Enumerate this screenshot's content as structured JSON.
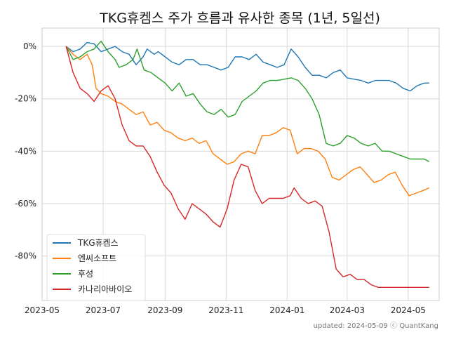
{
  "chart_data": {
    "type": "line",
    "title": "TKG휴켐스 주가 흐름과 유사한 종목 (1년, 5일선)",
    "xlabel": "",
    "ylabel": "",
    "x_ticks": [
      "2023-05",
      "2023-07",
      "2023-09",
      "2023-11",
      "2024-01",
      "2024-03",
      "2024-05"
    ],
    "y_ticks": [
      0,
      -20,
      -40,
      -60,
      -80
    ],
    "y_tick_labels": [
      "0%",
      "-20%",
      "-40%",
      "-60%",
      "-80%"
    ],
    "xlim": [
      "2023-05-01",
      "2024-06-01"
    ],
    "ylim": [
      -97,
      7
    ],
    "grid": true,
    "legend_position": "lower-left",
    "footer": "updated: 2024-05-09 ⓒ QuantKang",
    "series": [
      {
        "name": "TKG휴켐스",
        "color": "#1f77b4",
        "points": [
          [
            "2023-05-25",
            0
          ],
          [
            "2023-06-01",
            -2
          ],
          [
            "2023-06-08",
            -1
          ],
          [
            "2023-06-15",
            1.5
          ],
          [
            "2023-06-22",
            1
          ],
          [
            "2023-06-29",
            -2
          ],
          [
            "2023-07-06",
            -1
          ],
          [
            "2023-07-13",
            0
          ],
          [
            "2023-07-20",
            -2
          ],
          [
            "2023-07-27",
            -3
          ],
          [
            "2023-08-03",
            -7
          ],
          [
            "2023-08-10",
            -4
          ],
          [
            "2023-08-14",
            -1
          ],
          [
            "2023-08-21",
            -3
          ],
          [
            "2023-08-25",
            -2
          ],
          [
            "2023-09-01",
            -4
          ],
          [
            "2023-09-08",
            -6
          ],
          [
            "2023-09-15",
            -7
          ],
          [
            "2023-09-22",
            -5
          ],
          [
            "2023-09-29",
            -5
          ],
          [
            "2023-10-06",
            -7
          ],
          [
            "2023-10-13",
            -7
          ],
          [
            "2023-10-20",
            -8
          ],
          [
            "2023-10-27",
            -9
          ],
          [
            "2023-11-03",
            -8
          ],
          [
            "2023-11-10",
            -4
          ],
          [
            "2023-11-17",
            -4
          ],
          [
            "2023-11-24",
            -5
          ],
          [
            "2023-12-01",
            -3
          ],
          [
            "2023-12-08",
            -6
          ],
          [
            "2023-12-15",
            -7
          ],
          [
            "2023-12-22",
            -8
          ],
          [
            "2023-12-29",
            -7
          ],
          [
            "2024-01-05",
            -1
          ],
          [
            "2024-01-12",
            -4
          ],
          [
            "2024-01-19",
            -8
          ],
          [
            "2024-01-26",
            -11
          ],
          [
            "2024-02-02",
            -11
          ],
          [
            "2024-02-09",
            -12
          ],
          [
            "2024-02-16",
            -10
          ],
          [
            "2024-02-23",
            -9
          ],
          [
            "2024-03-01",
            -12
          ],
          [
            "2024-03-08",
            -12.5
          ],
          [
            "2024-03-15",
            -13
          ],
          [
            "2024-03-22",
            -14
          ],
          [
            "2024-03-29",
            -13
          ],
          [
            "2024-04-05",
            -13
          ],
          [
            "2024-04-12",
            -13
          ],
          [
            "2024-04-19",
            -14
          ],
          [
            "2024-04-26",
            -16
          ],
          [
            "2024-05-03",
            -17
          ],
          [
            "2024-05-10",
            -15
          ],
          [
            "2024-05-17",
            -14
          ],
          [
            "2024-05-22",
            -14
          ]
        ]
      },
      {
        "name": "엔씨소프트",
        "color": "#ff7f0e",
        "points": [
          [
            "2023-05-25",
            0
          ],
          [
            "2023-06-01",
            -3
          ],
          [
            "2023-06-08",
            -5
          ],
          [
            "2023-06-15",
            -3
          ],
          [
            "2023-06-20",
            -7
          ],
          [
            "2023-06-24",
            -16
          ],
          [
            "2023-06-29",
            -18
          ],
          [
            "2023-07-06",
            -19
          ],
          [
            "2023-07-13",
            -21
          ],
          [
            "2023-07-20",
            -22
          ],
          [
            "2023-07-27",
            -24
          ],
          [
            "2023-08-03",
            -26
          ],
          [
            "2023-08-10",
            -25
          ],
          [
            "2023-08-17",
            -30
          ],
          [
            "2023-08-24",
            -29
          ],
          [
            "2023-08-31",
            -32
          ],
          [
            "2023-09-07",
            -33
          ],
          [
            "2023-09-14",
            -35
          ],
          [
            "2023-09-21",
            -36
          ],
          [
            "2023-09-28",
            -35
          ],
          [
            "2023-10-05",
            -37
          ],
          [
            "2023-10-12",
            -36
          ],
          [
            "2023-10-19",
            -41
          ],
          [
            "2023-10-26",
            -43
          ],
          [
            "2023-11-02",
            -45
          ],
          [
            "2023-11-09",
            -44
          ],
          [
            "2023-11-16",
            -41
          ],
          [
            "2023-11-23",
            -40
          ],
          [
            "2023-11-30",
            -41
          ],
          [
            "2023-12-07",
            -34
          ],
          [
            "2023-12-14",
            -34
          ],
          [
            "2023-12-21",
            -33
          ],
          [
            "2023-12-28",
            -31
          ],
          [
            "2024-01-04",
            -32
          ],
          [
            "2024-01-11",
            -41
          ],
          [
            "2024-01-18",
            -39
          ],
          [
            "2024-01-25",
            -39
          ],
          [
            "2024-02-01",
            -40
          ],
          [
            "2024-02-08",
            -43
          ],
          [
            "2024-02-15",
            -50
          ],
          [
            "2024-02-22",
            -51
          ],
          [
            "2024-02-29",
            -49
          ],
          [
            "2024-03-07",
            -47
          ],
          [
            "2024-03-14",
            -46
          ],
          [
            "2024-03-21",
            -49
          ],
          [
            "2024-03-28",
            -52
          ],
          [
            "2024-04-04",
            -51
          ],
          [
            "2024-04-11",
            -49
          ],
          [
            "2024-04-18",
            -48
          ],
          [
            "2024-04-25",
            -53
          ],
          [
            "2024-05-02",
            -57
          ],
          [
            "2024-05-09",
            -56
          ],
          [
            "2024-05-16",
            -55
          ],
          [
            "2024-05-22",
            -54
          ]
        ]
      },
      {
        "name": "후성",
        "color": "#2ca02c",
        "points": [
          [
            "2023-05-25",
            0
          ],
          [
            "2023-06-01",
            -5
          ],
          [
            "2023-06-08",
            -4
          ],
          [
            "2023-06-15",
            -2
          ],
          [
            "2023-06-22",
            -1
          ],
          [
            "2023-06-29",
            2
          ],
          [
            "2023-07-06",
            -2
          ],
          [
            "2023-07-13",
            -5
          ],
          [
            "2023-07-17",
            -8
          ],
          [
            "2023-07-24",
            -7
          ],
          [
            "2023-07-31",
            -5
          ],
          [
            "2023-08-04",
            -1
          ],
          [
            "2023-08-11",
            -9
          ],
          [
            "2023-08-18",
            -10
          ],
          [
            "2023-08-25",
            -12
          ],
          [
            "2023-09-01",
            -14
          ],
          [
            "2023-09-08",
            -17
          ],
          [
            "2023-09-15",
            -14
          ],
          [
            "2023-09-22",
            -19
          ],
          [
            "2023-09-29",
            -18
          ],
          [
            "2023-10-06",
            -22
          ],
          [
            "2023-10-13",
            -25
          ],
          [
            "2023-10-20",
            -26
          ],
          [
            "2023-10-27",
            -24
          ],
          [
            "2023-11-03",
            -27
          ],
          [
            "2023-11-10",
            -26
          ],
          [
            "2023-11-17",
            -21
          ],
          [
            "2023-11-24",
            -19
          ],
          [
            "2023-12-01",
            -17
          ],
          [
            "2023-12-08",
            -14
          ],
          [
            "2023-12-15",
            -13
          ],
          [
            "2023-12-22",
            -13
          ],
          [
            "2023-12-29",
            -12.5
          ],
          [
            "2024-01-05",
            -12
          ],
          [
            "2024-01-12",
            -13
          ],
          [
            "2024-01-19",
            -16
          ],
          [
            "2024-01-26",
            -20
          ],
          [
            "2024-02-02",
            -26
          ],
          [
            "2024-02-09",
            -37
          ],
          [
            "2024-02-16",
            -38
          ],
          [
            "2024-02-23",
            -37
          ],
          [
            "2024-03-01",
            -34
          ],
          [
            "2024-03-08",
            -35
          ],
          [
            "2024-03-15",
            -37
          ],
          [
            "2024-03-22",
            -38
          ],
          [
            "2024-03-29",
            -37
          ],
          [
            "2024-04-05",
            -40
          ],
          [
            "2024-04-12",
            -40
          ],
          [
            "2024-04-19",
            -41
          ],
          [
            "2024-04-26",
            -42
          ],
          [
            "2024-05-03",
            -43
          ],
          [
            "2024-05-10",
            -43
          ],
          [
            "2024-05-17",
            -43
          ],
          [
            "2024-05-22",
            -44
          ]
        ]
      },
      {
        "name": "카나리아바이오",
        "color": "#d62728",
        "points": [
          [
            "2023-05-25",
            0
          ],
          [
            "2023-06-01",
            -10
          ],
          [
            "2023-06-08",
            -16
          ],
          [
            "2023-06-15",
            -18
          ],
          [
            "2023-06-22",
            -21
          ],
          [
            "2023-06-29",
            -17
          ],
          [
            "2023-07-06",
            -15
          ],
          [
            "2023-07-13",
            -20
          ],
          [
            "2023-07-20",
            -30
          ],
          [
            "2023-07-27",
            -36
          ],
          [
            "2023-08-03",
            -38
          ],
          [
            "2023-08-10",
            -38
          ],
          [
            "2023-08-17",
            -42
          ],
          [
            "2023-08-24",
            -48
          ],
          [
            "2023-08-31",
            -53
          ],
          [
            "2023-09-07",
            -56
          ],
          [
            "2023-09-14",
            -62
          ],
          [
            "2023-09-21",
            -66
          ],
          [
            "2023-09-28",
            -60
          ],
          [
            "2023-10-05",
            -62
          ],
          [
            "2023-10-12",
            -64
          ],
          [
            "2023-10-19",
            -67
          ],
          [
            "2023-10-26",
            -69
          ],
          [
            "2023-11-02",
            -62
          ],
          [
            "2023-11-09",
            -51
          ],
          [
            "2023-11-16",
            -45
          ],
          [
            "2023-11-23",
            -46
          ],
          [
            "2023-11-30",
            -55
          ],
          [
            "2023-12-07",
            -60
          ],
          [
            "2023-12-14",
            -58
          ],
          [
            "2023-12-21",
            -58
          ],
          [
            "2023-12-28",
            -58
          ],
          [
            "2024-01-04",
            -57
          ],
          [
            "2024-01-08",
            -54
          ],
          [
            "2024-01-15",
            -58
          ],
          [
            "2024-01-22",
            -60
          ],
          [
            "2024-01-29",
            -59
          ],
          [
            "2024-02-05",
            -61
          ],
          [
            "2024-02-12",
            -71
          ],
          [
            "2024-02-19",
            -85
          ],
          [
            "2024-02-26",
            -88
          ],
          [
            "2024-03-04",
            -87
          ],
          [
            "2024-03-11",
            -89
          ],
          [
            "2024-03-18",
            -89
          ],
          [
            "2024-03-25",
            -91
          ],
          [
            "2024-04-01",
            -92
          ],
          [
            "2024-04-08",
            -92
          ],
          [
            "2024-04-15",
            -92
          ],
          [
            "2024-04-22",
            -92
          ],
          [
            "2024-04-29",
            -92
          ],
          [
            "2024-05-06",
            -92
          ],
          [
            "2024-05-13",
            -92
          ],
          [
            "2024-05-22",
            -92
          ]
        ]
      }
    ]
  }
}
